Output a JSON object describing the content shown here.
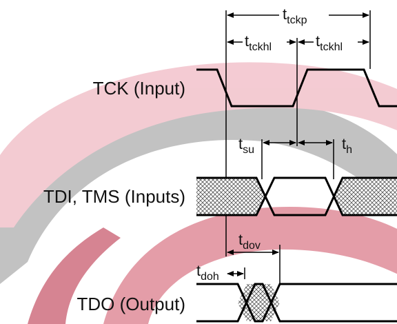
{
  "signals": {
    "tck": "TCK (Input)",
    "tdi": "TDI, TMS (Inputs)",
    "tdo": "TDO (Output)"
  },
  "timing": {
    "tckp": {
      "main": "t",
      "sub": "tckp"
    },
    "tckhl_1": {
      "main": "t",
      "sub": "tckhl"
    },
    "tckhl_2": {
      "main": "t",
      "sub": "tckhl"
    },
    "tsu": {
      "main": "t",
      "sub": "su"
    },
    "th": {
      "main": "t",
      "sub": "h"
    },
    "tdov": {
      "main": "t",
      "sub": "dov"
    },
    "tdoh": {
      "main": "t",
      "sub": "doh"
    }
  },
  "colors": {
    "watermark_red": "#e08c9a",
    "watermark_grey": "#b8b8b8",
    "waveform": "#000000"
  }
}
